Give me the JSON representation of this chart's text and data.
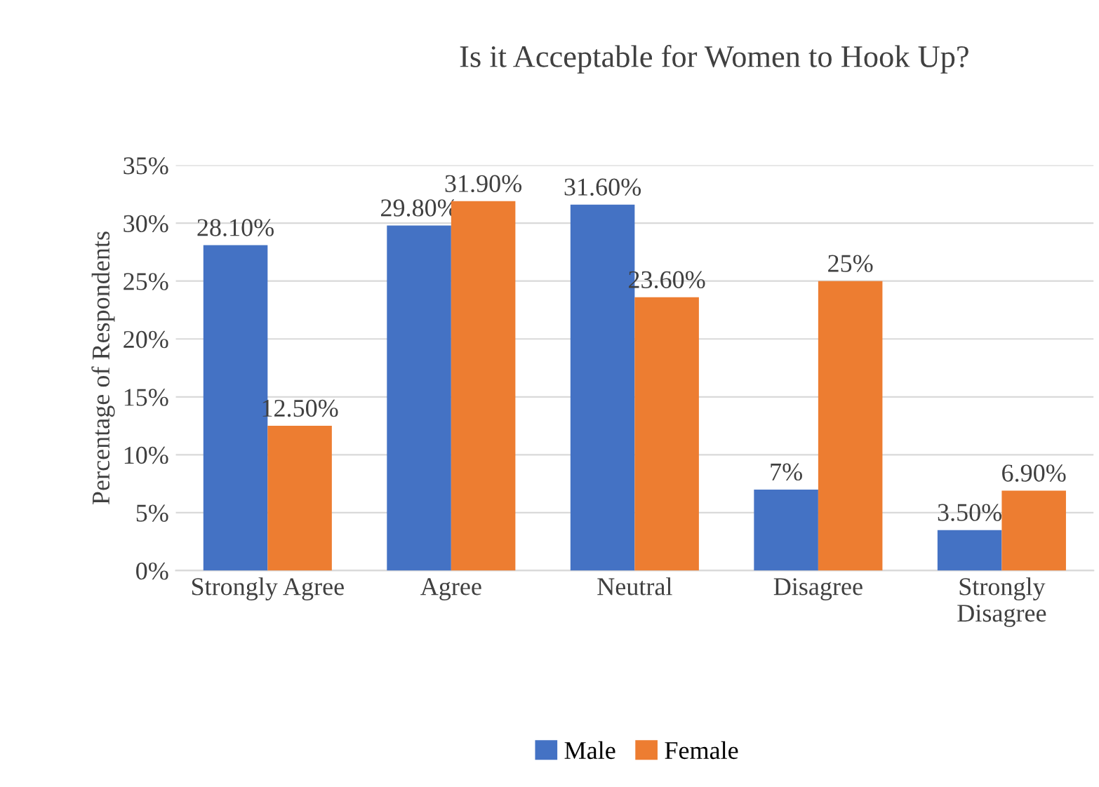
{
  "chart_data": {
    "type": "bar",
    "title": "Is it Acceptable for Women to Hook Up?",
    "ylabel": "Percentage of Respondents",
    "categories": [
      "Strongly Agree",
      "Agree",
      "Neutral",
      "Disagree",
      "Strongly\nDisagree"
    ],
    "series": [
      {
        "name": "Male",
        "color": "#4472c4",
        "values": [
          28.1,
          29.8,
          31.6,
          7,
          3.5
        ],
        "value_labels": [
          "28.10%",
          "29.80%",
          "31.60%",
          "7%",
          "3.50%"
        ]
      },
      {
        "name": "Female",
        "color": "#ed7d31",
        "values": [
          12.5,
          31.9,
          23.6,
          25,
          6.9
        ],
        "value_labels": [
          "12.50%",
          "31.90%",
          "23.60%",
          "25%",
          "6.90%"
        ]
      }
    ],
    "ylim": [
      0,
      35
    ],
    "yticks": [
      {
        "value": 0,
        "label": "0%"
      },
      {
        "value": 5,
        "label": "5%"
      },
      {
        "value": 10,
        "label": "10%"
      },
      {
        "value": 15,
        "label": "15%"
      },
      {
        "value": 20,
        "label": "20%"
      },
      {
        "value": 25,
        "label": "25%"
      },
      {
        "value": 30,
        "label": "30%"
      },
      {
        "value": 35,
        "label": "35%"
      }
    ],
    "grid": "y",
    "legend": "bottom"
  }
}
